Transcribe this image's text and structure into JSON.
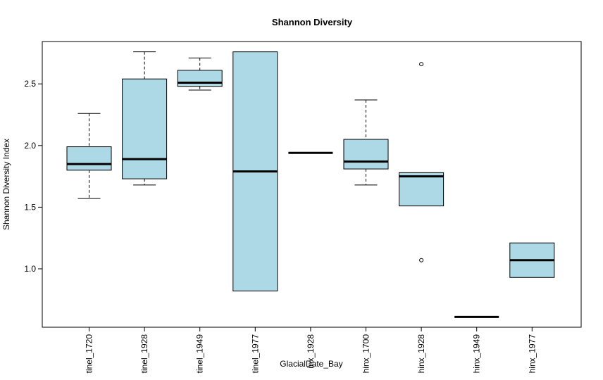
{
  "chart_data": {
    "type": "boxplot",
    "title": "Shannon Diversity",
    "xlabel": "GlacialDate_Bay",
    "ylabel": "Shannon Diversity Index",
    "ylim": [
      0.45,
      2.8
    ],
    "yticks": [
      1.0,
      1.5,
      2.0,
      2.5
    ],
    "ytick_labels": [
      "1.0",
      "1.5",
      "2.0",
      "2.5"
    ],
    "grid": false,
    "box_color": "#ADD8E6",
    "categories": [
      "tinel_1720",
      "tinel_1928",
      "tinel_1949",
      "tinel_1977",
      "inx_1928",
      "hinx_1700",
      "hinx_1928",
      "hinx_1949",
      "hinx_1977"
    ],
    "boxes": [
      {
        "min": 1.57,
        "q1": 1.8,
        "median": 1.85,
        "q3": 1.99,
        "max": 2.26,
        "outliers": []
      },
      {
        "min": 1.68,
        "q1": 1.73,
        "median": 1.89,
        "q3": 2.54,
        "max": 2.76,
        "outliers": []
      },
      {
        "min": 2.45,
        "q1": 2.48,
        "median": 2.51,
        "q3": 2.61,
        "max": 2.71,
        "outliers": []
      },
      {
        "min": 0.82,
        "q1": 0.82,
        "median": 1.79,
        "q3": 2.76,
        "max": 2.76,
        "outliers": []
      },
      {
        "min": 1.94,
        "q1": 1.94,
        "median": 1.94,
        "q3": 1.94,
        "max": 1.94,
        "outliers": []
      },
      {
        "min": 1.68,
        "q1": 1.81,
        "median": 1.87,
        "q3": 2.05,
        "max": 2.37,
        "outliers": []
      },
      {
        "min": 1.51,
        "q1": 1.51,
        "median": 1.75,
        "q3": 1.78,
        "max": 1.78,
        "outliers": [
          2.66,
          1.07
        ]
      },
      {
        "min": 0.61,
        "q1": 0.61,
        "median": 0.61,
        "q3": 0.61,
        "max": 0.61,
        "outliers": []
      },
      {
        "min": 0.93,
        "q1": 0.93,
        "median": 1.07,
        "q3": 1.21,
        "max": 1.21,
        "outliers": []
      }
    ]
  }
}
